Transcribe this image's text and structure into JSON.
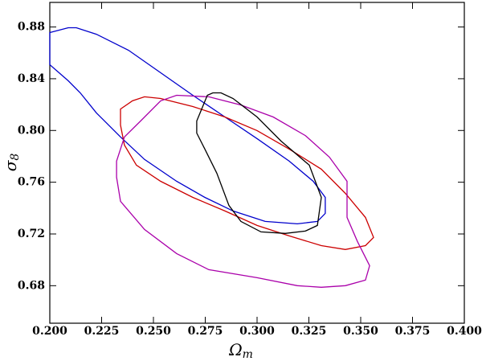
{
  "chart_data": {
    "type": "contour",
    "xlabel": "Ω",
    "xlabel_sub": "m",
    "ylabel": "σ",
    "ylabel_sub": "8",
    "xlim": [
      0.2,
      0.4
    ],
    "ylim": [
      0.651,
      0.899
    ],
    "xticks": [
      {
        "value": 0.2,
        "label": "0.200"
      },
      0.225,
      {
        "value": 0.25,
        "label": "0.250"
      },
      0.275,
      {
        "value": 0.3,
        "label": "0.300"
      },
      0.325,
      {
        "value": 0.35,
        "label": "0.350"
      },
      0.375,
      {
        "value": 0.4,
        "label": "0.400"
      }
    ],
    "yticks": [
      0.68,
      0.72,
      0.76,
      {
        "value": 0.8,
        "label": "0.80"
      },
      0.84,
      0.88
    ],
    "series": [
      {
        "color": "#0000cc",
        "x": [
          0.2,
          0.2089,
          0.2128,
          0.2225,
          0.238,
          0.2535,
          0.269,
          0.2845,
          0.3,
          0.3155,
          0.3271,
          0.3329,
          0.3329,
          0.3291,
          0.3194,
          0.3039,
          0.2884,
          0.2748,
          0.2612,
          0.2457,
          0.2341,
          0.2225,
          0.2147,
          0.2089,
          0.2
        ],
        "y": [
          0.8757,
          0.8794,
          0.8794,
          0.8744,
          0.862,
          0.8446,
          0.8272,
          0.8104,
          0.7937,
          0.7763,
          0.7607,
          0.7483,
          0.7359,
          0.7297,
          0.7278,
          0.7297,
          0.7378,
          0.7483,
          0.7607,
          0.7776,
          0.795,
          0.8136,
          0.8291,
          0.8384,
          0.8508
        ]
      },
      {
        "color": "#cc0000",
        "x": [
          0.2341,
          0.2399,
          0.2457,
          0.2535,
          0.269,
          0.2845,
          0.3,
          0.3155,
          0.331,
          0.3426,
          0.3523,
          0.3562,
          0.3523,
          0.3426,
          0.331,
          0.3155,
          0.3,
          0.2845,
          0.269,
          0.2535,
          0.2418,
          0.236,
          0.2341
        ],
        "y": [
          0.8166,
          0.8229,
          0.826,
          0.8247,
          0.8185,
          0.8104,
          0.7999,
          0.7856,
          0.7701,
          0.7514,
          0.7328,
          0.7173,
          0.711,
          0.708,
          0.711,
          0.7185,
          0.7266,
          0.7378,
          0.7483,
          0.7607,
          0.7732,
          0.7887,
          0.8042
        ]
      },
      {
        "color": "#aa00aa",
        "x": [
          0.2322,
          0.236,
          0.2438,
          0.2535,
          0.2612,
          0.2767,
          0.2922,
          0.3078,
          0.3233,
          0.3349,
          0.3434,
          0.3434,
          0.3484,
          0.3543,
          0.3523,
          0.3426,
          0.331,
          0.3194,
          0.3,
          0.2767,
          0.2612,
          0.2457,
          0.2341,
          0.2322
        ],
        "y": [
          0.7763,
          0.795,
          0.8073,
          0.8229,
          0.8272,
          0.826,
          0.8197,
          0.8104,
          0.7961,
          0.7794,
          0.7607,
          0.7328,
          0.7142,
          0.6955,
          0.6843,
          0.68,
          0.6788,
          0.68,
          0.6862,
          0.6924,
          0.7048,
          0.7235,
          0.7452,
          0.7639
        ]
      },
      {
        "color": "#000000",
        "x": [
          0.2709,
          0.276,
          0.2787,
          0.2826,
          0.2884,
          0.3,
          0.3116,
          0.3252,
          0.331,
          0.3291,
          0.3233,
          0.3136,
          0.3019,
          0.2922,
          0.2864,
          0.2806,
          0.2748,
          0.2709
        ],
        "y": [
          0.8073,
          0.8272,
          0.8291,
          0.8291,
          0.8247,
          0.8104,
          0.7918,
          0.7732,
          0.7483,
          0.7266,
          0.7222,
          0.7204,
          0.7216,
          0.7297,
          0.7421,
          0.767,
          0.7856,
          0.798
        ]
      }
    ]
  }
}
